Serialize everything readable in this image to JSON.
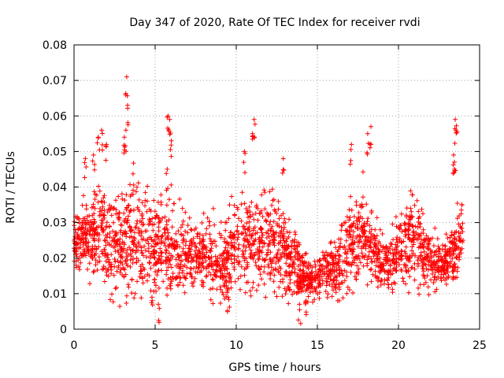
{
  "chart_data": {
    "type": "scatter",
    "title": "Day 347 of 2020, Rate Of TEC Index for receiver rvdi",
    "xlabel": "GPS time / hours",
    "ylabel": "ROTI / TECUs",
    "xlim": [
      0,
      25
    ],
    "ylim": [
      0,
      0.08
    ],
    "x_ticks": [
      "0",
      "5",
      "10",
      "15",
      "20",
      "25"
    ],
    "y_ticks": [
      "0",
      "0.01",
      "0.02",
      "0.03",
      "0.04",
      "0.05",
      "0.06",
      "0.07",
      "0.08"
    ],
    "grid": true,
    "marker": "+",
    "series_color": "#ff0000",
    "envelope": {
      "description_hours": [
        0,
        0.5,
        1,
        1.5,
        2,
        2.5,
        3,
        3.5,
        4,
        4.5,
        5,
        5.5,
        6,
        6.5,
        7,
        7.5,
        8,
        8.5,
        9,
        9.5,
        10,
        10.5,
        11,
        11.5,
        12,
        12.5,
        13,
        13.5,
        14,
        14.5,
        15,
        15.5,
        16,
        16.5,
        17,
        17.5,
        18,
        18.5,
        19,
        19.5,
        20,
        20.5,
        21,
        21.5,
        22,
        22.5,
        23,
        23.5,
        24
      ],
      "median": [
        0.025,
        0.026,
        0.025,
        0.027,
        0.024,
        0.023,
        0.024,
        0.025,
        0.025,
        0.024,
        0.023,
        0.024,
        0.023,
        0.021,
        0.021,
        0.021,
        0.022,
        0.02,
        0.018,
        0.02,
        0.023,
        0.024,
        0.025,
        0.024,
        0.024,
        0.023,
        0.021,
        0.019,
        0.016,
        0.013,
        0.015,
        0.017,
        0.017,
        0.02,
        0.024,
        0.026,
        0.026,
        0.023,
        0.019,
        0.018,
        0.022,
        0.025,
        0.025,
        0.022,
        0.019,
        0.019,
        0.019,
        0.022,
        0.028
      ],
      "spread": [
        0.007,
        0.008,
        0.008,
        0.012,
        0.01,
        0.011,
        0.013,
        0.014,
        0.012,
        0.011,
        0.01,
        0.011,
        0.012,
        0.009,
        0.009,
        0.008,
        0.008,
        0.008,
        0.008,
        0.009,
        0.01,
        0.011,
        0.01,
        0.01,
        0.011,
        0.01,
        0.009,
        0.008,
        0.006,
        0.005,
        0.005,
        0.006,
        0.007,
        0.008,
        0.01,
        0.01,
        0.01,
        0.008,
        0.006,
        0.006,
        0.008,
        0.01,
        0.01,
        0.009,
        0.007,
        0.006,
        0.006,
        0.007,
        0.009
      ]
    },
    "peaks": [
      {
        "x": 1.5,
        "y": 0.054
      },
      {
        "x": 1.7,
        "y": 0.056
      },
      {
        "x": 3.25,
        "y": 0.071
      },
      {
        "x": 3.3,
        "y": 0.063
      },
      {
        "x": 3.2,
        "y": 0.056
      },
      {
        "x": 3.1,
        "y": 0.054
      },
      {
        "x": 5.8,
        "y": 0.06
      },
      {
        "x": 5.9,
        "y": 0.059
      },
      {
        "x": 11.1,
        "y": 0.059
      },
      {
        "x": 11.0,
        "y": 0.055
      },
      {
        "x": 18.3,
        "y": 0.057
      },
      {
        "x": 18.1,
        "y": 0.055
      },
      {
        "x": 17.1,
        "y": 0.052
      },
      {
        "x": 23.5,
        "y": 0.059
      },
      {
        "x": 23.55,
        "y": 0.056
      },
      {
        "x": 23.4,
        "y": 0.049
      },
      {
        "x": 23.45,
        "y": 0.047
      },
      {
        "x": 10.5,
        "y": 0.05
      },
      {
        "x": 12.9,
        "y": 0.048
      },
      {
        "x": 0.7,
        "y": 0.048
      },
      {
        "x": 1.2,
        "y": 0.049
      },
      {
        "x": 2.0,
        "y": 0.052
      },
      {
        "x": 6.0,
        "y": 0.053
      },
      {
        "x": 5.75,
        "y": 0.045
      },
      {
        "x": 5.2,
        "y": 0.007
      },
      {
        "x": 4.8,
        "y": 0.009
      },
      {
        "x": 13.9,
        "y": 0.007
      },
      {
        "x": 14.3,
        "y": 0.008
      },
      {
        "x": 9.5,
        "y": 0.009
      }
    ]
  }
}
